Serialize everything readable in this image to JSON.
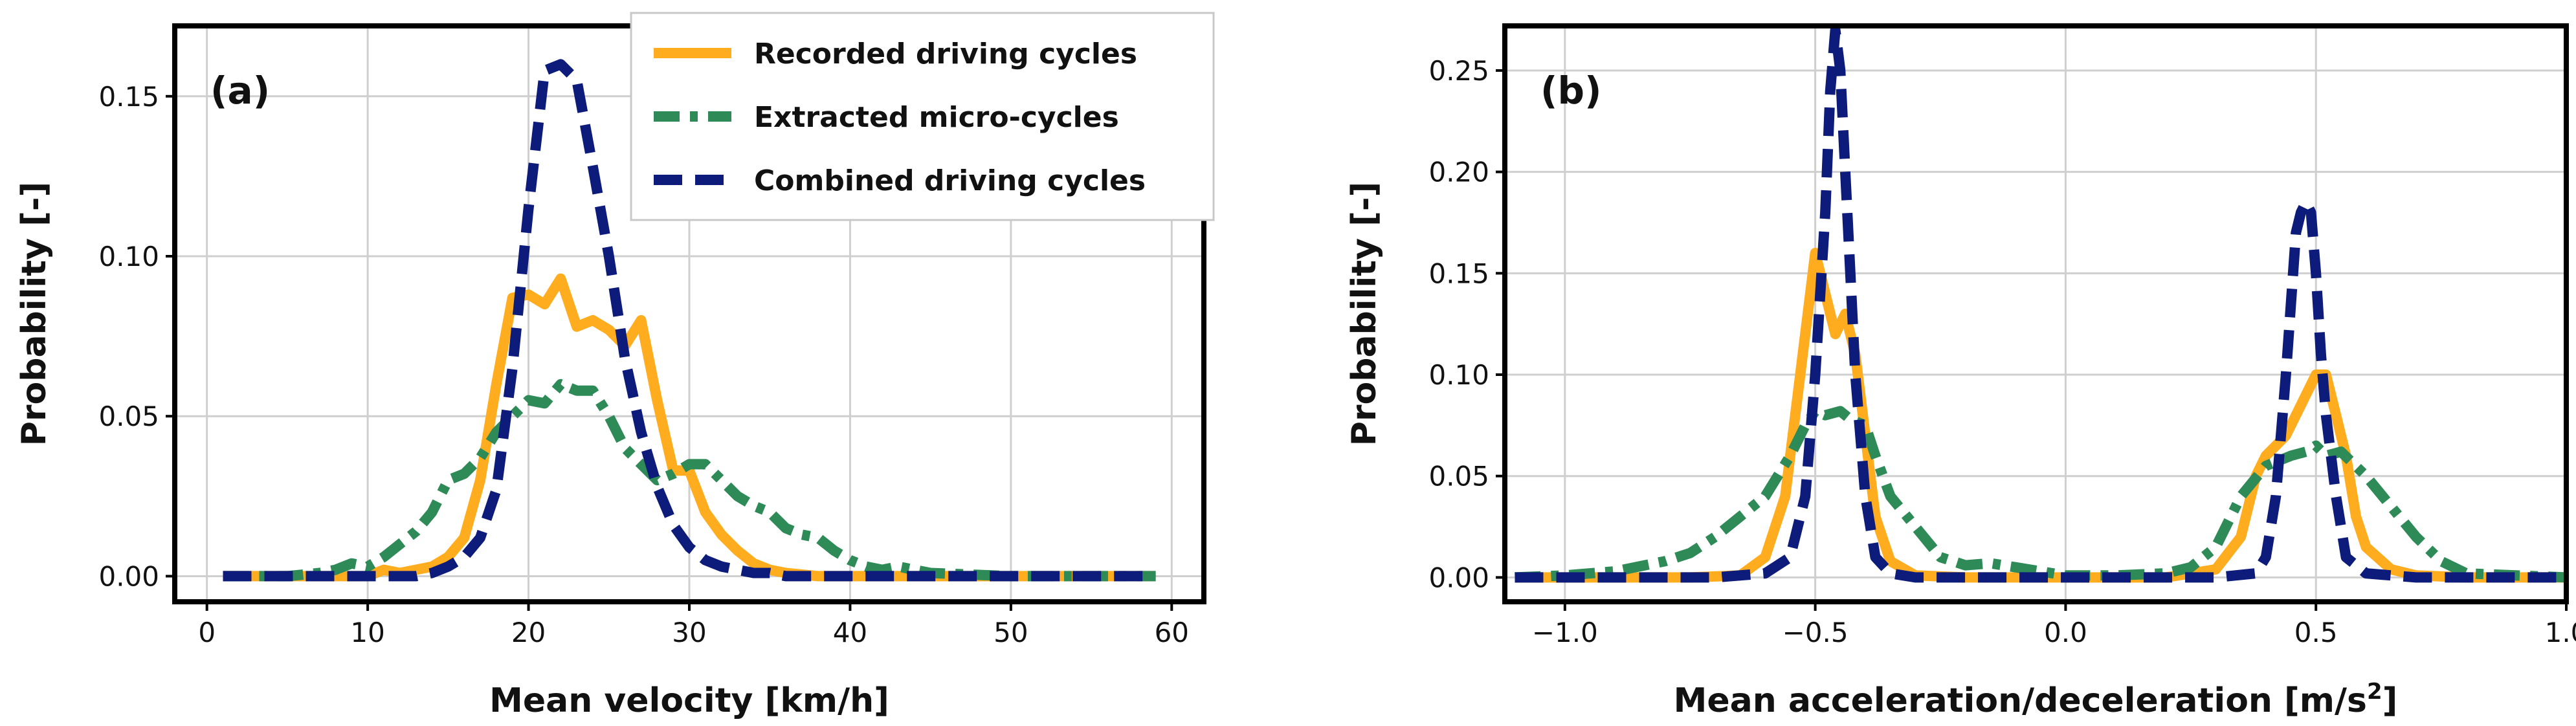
{
  "chart_data": [
    {
      "type": "line",
      "panel_label": "(a)",
      "xlabel": "Mean velocity [km/h]",
      "ylabel": "Probability [-]",
      "xlim": [
        -2,
        62
      ],
      "ylim": [
        -0.008,
        0.172
      ],
      "xticks": [
        0,
        10,
        20,
        30,
        40,
        50,
        60
      ],
      "xtick_labels": [
        "0",
        "10",
        "20",
        "30",
        "40",
        "50",
        "60"
      ],
      "yticks": [
        0.0,
        0.05,
        0.1,
        0.15
      ],
      "ytick_labels": [
        "0.00",
        "0.05",
        "0.10",
        "0.15"
      ],
      "grid": true,
      "legend": {
        "placement": "top-right",
        "entries": [
          "Recorded driving cycles",
          "Extracted micro-cycles",
          "Combined driving cycles"
        ]
      },
      "series": [
        {
          "name": "Recorded driving cycles",
          "color": "#ffad1f",
          "style": "solid",
          "x": [
            1,
            5,
            8,
            10,
            11,
            12,
            13,
            14,
            15,
            16,
            17,
            18,
            19,
            20,
            21,
            22,
            23,
            24,
            25,
            26,
            27,
            28,
            29,
            30,
            31,
            32,
            33,
            34,
            35,
            36,
            38,
            40,
            45,
            50,
            55,
            59
          ],
          "y": [
            0.0,
            0.0,
            0.0,
            0.0,
            0.002,
            0.001,
            0.002,
            0.003,
            0.006,
            0.012,
            0.03,
            0.06,
            0.087,
            0.088,
            0.085,
            0.093,
            0.078,
            0.08,
            0.077,
            0.072,
            0.08,
            0.055,
            0.033,
            0.033,
            0.02,
            0.013,
            0.008,
            0.004,
            0.002,
            0.001,
            0.0,
            0.0,
            0.0,
            0.0,
            0.0,
            0.0
          ]
        },
        {
          "name": "Extracted micro-cycles",
          "color": "#2e8b57",
          "style": "dashdot",
          "x": [
            1,
            5,
            7,
            8,
            9,
            10,
            11,
            12,
            13,
            14,
            15,
            16,
            17,
            18,
            19,
            20,
            21,
            22,
            23,
            24,
            25,
            26,
            27,
            28,
            29,
            30,
            31,
            32,
            33,
            34,
            35,
            36,
            37,
            38,
            39,
            40,
            41,
            42,
            43,
            44,
            45,
            50,
            55,
            59
          ],
          "y": [
            0.0,
            0.0,
            0.001,
            0.002,
            0.004,
            0.003,
            0.006,
            0.01,
            0.014,
            0.02,
            0.03,
            0.032,
            0.037,
            0.045,
            0.05,
            0.055,
            0.054,
            0.06,
            0.058,
            0.058,
            0.05,
            0.04,
            0.035,
            0.03,
            0.032,
            0.035,
            0.035,
            0.03,
            0.025,
            0.022,
            0.02,
            0.015,
            0.013,
            0.012,
            0.008,
            0.005,
            0.003,
            0.002,
            0.003,
            0.002,
            0.001,
            0.0,
            0.0,
            0.0
          ]
        },
        {
          "name": "Combined driving cycles",
          "color": "#0d1b7a",
          "style": "dashed",
          "x": [
            1,
            5,
            10,
            12,
            13,
            14,
            15,
            16,
            17,
            18,
            19,
            20,
            21,
            22,
            23,
            24,
            25,
            26,
            27,
            28,
            29,
            30,
            31,
            32,
            33,
            34,
            35,
            36,
            38,
            40,
            45,
            50,
            55,
            59
          ],
          "y": [
            0.0,
            0.0,
            0.0,
            0.0,
            0.0,
            0.001,
            0.003,
            0.006,
            0.012,
            0.027,
            0.065,
            0.115,
            0.158,
            0.16,
            0.155,
            0.128,
            0.1,
            0.068,
            0.045,
            0.028,
            0.016,
            0.009,
            0.005,
            0.003,
            0.002,
            0.001,
            0.001,
            0.0,
            0.0,
            0.0,
            0.0,
            0.0,
            0.0,
            0.0
          ]
        }
      ]
    },
    {
      "type": "line",
      "panel_label": "(b)",
      "xlabel_prefix": "Mean acceleration/deceleration [m/s",
      "xlabel_sup": "2",
      "xlabel_suffix": "]",
      "ylabel": "Probability [-]",
      "xlim": [
        -1.12,
        1.0
      ],
      "ylim": [
        -0.012,
        0.272
      ],
      "xticks": [
        -1.0,
        -0.5,
        0.0,
        0.5,
        1.0
      ],
      "xtick_labels": [
        "−1.0",
        "−0.5",
        "0.0",
        "0.5",
        "1.0"
      ],
      "yticks": [
        0.0,
        0.05,
        0.1,
        0.15,
        0.2,
        0.25
      ],
      "ytick_labels": [
        "0.00",
        "0.05",
        "0.10",
        "0.15",
        "0.20",
        "0.25"
      ],
      "grid": true,
      "series": [
        {
          "name": "Recorded driving cycles",
          "color": "#ffad1f",
          "style": "solid",
          "x": [
            -1.1,
            -0.9,
            -0.75,
            -0.65,
            -0.6,
            -0.56,
            -0.53,
            -0.5,
            -0.48,
            -0.46,
            -0.44,
            -0.42,
            -0.4,
            -0.38,
            -0.35,
            -0.3,
            -0.2,
            0.0,
            0.2,
            0.3,
            0.35,
            0.38,
            0.4,
            0.42,
            0.44,
            0.46,
            0.48,
            0.5,
            0.52,
            0.54,
            0.56,
            0.58,
            0.6,
            0.65,
            0.7,
            0.8,
            1.0
          ],
          "y": [
            0.0,
            0.0,
            0.0,
            0.001,
            0.01,
            0.04,
            0.1,
            0.16,
            0.14,
            0.12,
            0.13,
            0.11,
            0.07,
            0.03,
            0.008,
            0.001,
            0.0,
            0.0,
            0.0,
            0.004,
            0.02,
            0.05,
            0.06,
            0.065,
            0.07,
            0.08,
            0.09,
            0.1,
            0.1,
            0.08,
            0.06,
            0.03,
            0.015,
            0.004,
            0.001,
            0.0,
            0.0
          ]
        },
        {
          "name": "Extracted micro-cycles",
          "color": "#2e8b57",
          "style": "dashdot",
          "x": [
            -1.1,
            -1.0,
            -0.9,
            -0.8,
            -0.75,
            -0.7,
            -0.65,
            -0.6,
            -0.55,
            -0.52,
            -0.5,
            -0.48,
            -0.45,
            -0.43,
            -0.4,
            -0.38,
            -0.35,
            -0.3,
            -0.25,
            -0.2,
            -0.15,
            -0.1,
            0.0,
            0.1,
            0.2,
            0.25,
            0.3,
            0.35,
            0.4,
            0.45,
            0.48,
            0.5,
            0.52,
            0.55,
            0.6,
            0.65,
            0.7,
            0.75,
            0.8,
            1.0
          ],
          "y": [
            0.0,
            0.001,
            0.003,
            0.008,
            0.012,
            0.02,
            0.03,
            0.04,
            0.06,
            0.075,
            0.082,
            0.08,
            0.082,
            0.078,
            0.075,
            0.06,
            0.04,
            0.025,
            0.01,
            0.006,
            0.007,
            0.005,
            0.001,
            0.001,
            0.002,
            0.005,
            0.015,
            0.04,
            0.055,
            0.06,
            0.062,
            0.065,
            0.06,
            0.062,
            0.05,
            0.035,
            0.02,
            0.008,
            0.002,
            0.0
          ]
        },
        {
          "name": "Combined driving cycles",
          "color": "#0d1b7a",
          "style": "dashed",
          "x": [
            -1.1,
            -0.7,
            -0.6,
            -0.55,
            -0.52,
            -0.5,
            -0.48,
            -0.47,
            -0.46,
            -0.45,
            -0.44,
            -0.43,
            -0.42,
            -0.4,
            -0.38,
            -0.35,
            -0.3,
            0.0,
            0.3,
            0.38,
            0.4,
            0.42,
            0.44,
            0.46,
            0.47,
            0.48,
            0.49,
            0.5,
            0.51,
            0.52,
            0.54,
            0.56,
            0.6,
            0.7,
            1.0
          ],
          "y": [
            0.0,
            0.0,
            0.002,
            0.01,
            0.04,
            0.1,
            0.18,
            0.24,
            0.27,
            0.25,
            0.2,
            0.15,
            0.1,
            0.04,
            0.01,
            0.002,
            0.0,
            0.0,
            0.0,
            0.002,
            0.01,
            0.04,
            0.1,
            0.17,
            0.18,
            0.185,
            0.18,
            0.15,
            0.11,
            0.08,
            0.04,
            0.01,
            0.002,
            0.0,
            0.0
          ]
        }
      ]
    }
  ]
}
